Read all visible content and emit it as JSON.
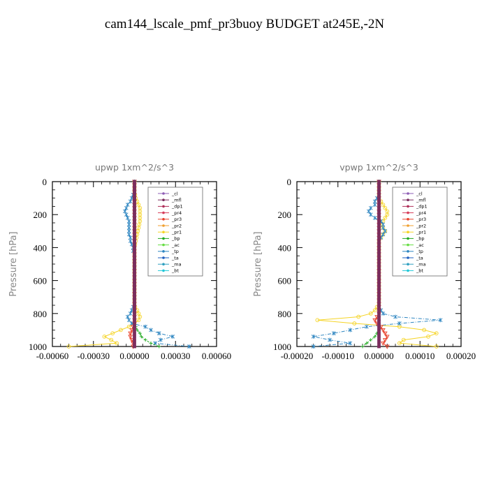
{
  "page": {
    "title": "cam144_lscale_pmf_pr3buoy  BUDGET at245E,-2N"
  },
  "chart_data": [
    {
      "type": "line",
      "title": "upwp   1xm^2/s^3",
      "ylabel": "Pressure [hPa]",
      "xlabel": "",
      "xlim": [
        -0.0006,
        0.0006
      ],
      "ylim": [
        1000,
        0
      ],
      "x_ticks": [
        "-0.00060",
        "-0.00030",
        "0.00000",
        "0.00030",
        "0.00060"
      ],
      "y_ticks": [
        "0",
        "200",
        "400",
        "600",
        "800",
        "1000"
      ],
      "legend_position": "top-right",
      "legend": [
        "_cl",
        "_mfl",
        "_dp1",
        "_pr4",
        "_pr3",
        "_pr2",
        "_pr1",
        "_bp",
        "_ac",
        "_tp",
        "_ta",
        "_ma",
        "_bt"
      ],
      "y": [
        0,
        20,
        40,
        60,
        80,
        100,
        120,
        140,
        160,
        180,
        200,
        220,
        240,
        260,
        280,
        300,
        320,
        340,
        360,
        380,
        400,
        420,
        440,
        460,
        480,
        500,
        520,
        540,
        560,
        580,
        600,
        620,
        640,
        660,
        680,
        700,
        720,
        740,
        760,
        780,
        800,
        820,
        840,
        860,
        880,
        900,
        920,
        940,
        960,
        980,
        1000
      ],
      "series": [
        {
          "name": "_pr1",
          "color": "#f5d425",
          "values": [
            0,
            0,
            0,
            0,
            5e-06,
            1e-05,
            2e-05,
            3e-05,
            4e-05,
            4e-05,
            4e-05,
            4e-05,
            4e-05,
            3.5e-05,
            3e-05,
            2.5e-05,
            2e-05,
            1.5e-05,
            1e-05,
            5e-06,
            0,
            0,
            0,
            0,
            0,
            0,
            0,
            0,
            0,
            0,
            0,
            0,
            0,
            0,
            0,
            0,
            0,
            0,
            5e-06,
            2e-05,
            3e-05,
            4e-05,
            3e-05,
            0,
            -4e-05,
            -0.0001,
            -0.00016,
            -0.00022,
            -0.00017,
            -0.00013,
            -0.00048
          ]
        },
        {
          "name": "_tp",
          "color": "#2e86c1",
          "values": [
            0,
            0,
            0,
            0,
            -1e-05,
            -2e-05,
            -3e-05,
            -5e-05,
            -6e-05,
            -7e-05,
            -6e-05,
            -5e-05,
            -4e-05,
            -4e-05,
            -4e-05,
            -4e-05,
            -4e-05,
            -3e-05,
            -3e-05,
            -2e-05,
            -1e-05,
            -1e-05,
            0,
            0,
            0,
            0,
            0,
            0,
            0,
            0,
            0,
            0,
            0,
            0,
            0,
            0,
            0,
            0,
            -1e-05,
            -2e-05,
            -3e-05,
            -5e-05,
            -4e-05,
            -2e-05,
            8e-05,
            0.00012,
            0.00018,
            0.00028,
            0.00019,
            0.00015,
            0.0004
          ]
        },
        {
          "name": "_bp",
          "color": "#22aa22",
          "values": [
            0,
            0,
            0,
            0,
            0,
            0,
            0,
            0,
            0,
            0,
            0,
            0,
            0,
            0,
            0,
            0,
            0,
            0,
            0,
            0,
            0,
            0,
            0,
            0,
            0,
            0,
            0,
            0,
            0,
            0,
            0,
            0,
            0,
            0,
            0,
            0,
            0,
            0,
            0,
            0,
            0,
            0,
            0,
            0,
            1e-05,
            2e-05,
            4e-05,
            5e-05,
            8e-05,
            0.00012,
            0.00018
          ]
        },
        {
          "name": "_pr3",
          "color": "#e8402a",
          "values": [
            0,
            0,
            0,
            0,
            0,
            0,
            0,
            0,
            0,
            0,
            0,
            0,
            0,
            0,
            0,
            0,
            0,
            0,
            0,
            0,
            0,
            0,
            0,
            0,
            0,
            0,
            0,
            0,
            0,
            0,
            0,
            0,
            0,
            0,
            0,
            0,
            0,
            0,
            0,
            0,
            0,
            0,
            0,
            0,
            -1e-05,
            -2e-05,
            -3e-05,
            -3e-05,
            -2e-05,
            -1e-05,
            -1e-05
          ]
        },
        {
          "name": "_mfl",
          "color": "#7b2d5e",
          "values": [
            0,
            0,
            0,
            0,
            0,
            0,
            0,
            0,
            0,
            0,
            0,
            0,
            0,
            0,
            0,
            0,
            0,
            0,
            0,
            0,
            0,
            0,
            0,
            0,
            0,
            0,
            0,
            0,
            0,
            0,
            0,
            0,
            0,
            0,
            0,
            0,
            0,
            0,
            0,
            0,
            0,
            0,
            0,
            0,
            0,
            0,
            0,
            0,
            0,
            0,
            0
          ]
        }
      ]
    },
    {
      "type": "line",
      "title": "vpwp   1xm^2/s^3",
      "ylabel": "Pressure [hPa]",
      "xlabel": "",
      "xlim": [
        -0.0002,
        0.0002
      ],
      "ylim": [
        1000,
        0
      ],
      "x_ticks": [
        "-0.00020",
        "-0.00010",
        "0.00000",
        "0.00010",
        "0.00020"
      ],
      "y_ticks": [
        "0",
        "200",
        "400",
        "600",
        "800",
        "1000"
      ],
      "legend_position": "top-right",
      "legend": [
        "_cl",
        "_mfl",
        "_dp1",
        "_pr4",
        "_pr3",
        "_pr2",
        "_pr1",
        "_bp",
        "_ac",
        "_tp",
        "_ta",
        "_ma",
        "_bt"
      ],
      "y": [
        0,
        20,
        40,
        60,
        80,
        100,
        120,
        140,
        160,
        180,
        200,
        220,
        240,
        260,
        280,
        300,
        320,
        340,
        360,
        380,
        400,
        420,
        440,
        460,
        480,
        500,
        520,
        540,
        560,
        580,
        600,
        620,
        640,
        660,
        680,
        700,
        720,
        740,
        760,
        780,
        800,
        820,
        840,
        860,
        880,
        900,
        920,
        940,
        960,
        980,
        1000
      ],
      "series": [
        {
          "name": "_pr1",
          "color": "#f5d425",
          "values": [
            0,
            0,
            0,
            0,
            0,
            0,
            5e-06,
            1e-05,
            1.5e-05,
            2e-05,
            2e-05,
            1.5e-05,
            1e-05,
            5e-06,
            1e-05,
            1.5e-05,
            1e-05,
            5e-06,
            0,
            0,
            0,
            0,
            0,
            0,
            0,
            0,
            0,
            0,
            0,
            0,
            0,
            0,
            0,
            0,
            0,
            0,
            0,
            0,
            -5e-06,
            -1e-05,
            -2e-05,
            -5e-05,
            -0.00015,
            -6e-05,
            5e-05,
            0.00011,
            0.00014,
            0.00012,
            6e-05,
            5e-05,
            0.00014
          ]
        },
        {
          "name": "_tp",
          "color": "#2e86c1",
          "values": [
            0,
            0,
            0,
            0,
            0,
            -5e-06,
            -1e-05,
            -1e-05,
            -2e-05,
            -2.5e-05,
            -2e-05,
            -1e-05,
            5e-06,
            1e-05,
            1e-05,
            1.5e-05,
            1e-05,
            5e-06,
            0,
            0,
            0,
            0,
            0,
            0,
            0,
            0,
            0,
            0,
            0,
            0,
            0,
            0,
            0,
            0,
            0,
            0,
            0,
            0,
            0,
            5e-06,
            1e-05,
            4e-05,
            0.00015,
            5e-05,
            -3e-05,
            -7e-05,
            -0.00011,
            -0.00016,
            -0.00012,
            -7e-05,
            -0.00016
          ]
        },
        {
          "name": "_bp",
          "color": "#22aa22",
          "values": [
            0,
            0,
            0,
            0,
            0,
            0,
            0,
            0,
            0,
            0,
            0,
            0,
            0,
            0,
            0,
            0,
            0,
            0,
            0,
            0,
            0,
            0,
            0,
            0,
            0,
            0,
            0,
            0,
            0,
            0,
            0,
            0,
            0,
            0,
            0,
            0,
            0,
            0,
            0,
            0,
            0,
            0,
            0,
            0,
            0,
            0,
            -5e-06,
            -1e-05,
            -2e-05,
            -3e-05,
            -4e-05
          ]
        },
        {
          "name": "_pr3",
          "color": "#e8402a",
          "values": [
            0,
            0,
            0,
            0,
            0,
            0,
            0,
            0,
            0,
            0,
            0,
            0,
            0,
            0,
            0,
            0,
            0,
            0,
            0,
            0,
            0,
            0,
            0,
            0,
            0,
            0,
            0,
            0,
            0,
            0,
            0,
            0,
            0,
            0,
            0,
            0,
            0,
            0,
            0,
            0,
            0,
            -5e-06,
            -1e-05,
            -5e-06,
            5e-06,
            1e-05,
            1.5e-05,
            2e-05,
            1.5e-05,
            1e-05,
            2e-05
          ]
        },
        {
          "name": "_mfl",
          "color": "#7b2d5e",
          "values": [
            0,
            0,
            0,
            0,
            0,
            0,
            0,
            0,
            0,
            0,
            0,
            0,
            0,
            0,
            0,
            0,
            0,
            0,
            0,
            0,
            0,
            0,
            0,
            0,
            0,
            0,
            0,
            0,
            0,
            0,
            0,
            0,
            0,
            0,
            0,
            0,
            0,
            0,
            0,
            0,
            0,
            0,
            0,
            0,
            0,
            0,
            0,
            0,
            0,
            0,
            0
          ]
        }
      ]
    }
  ],
  "legend_colors": {
    "_cl": "#8e5db5",
    "_mfl": "#7b2d5e",
    "_dp1": "#b0305a",
    "_pr4": "#d63c5a",
    "_pr3": "#e8402a",
    "_pr2": "#f0a030",
    "_pr1": "#f5d425",
    "_bp": "#22aa22",
    "_ac": "#66dd44",
    "_tp": "#2e86c1",
    "_ta": "#2060c0",
    "_ma": "#30a0c0",
    "_bt": "#22c8d8"
  }
}
